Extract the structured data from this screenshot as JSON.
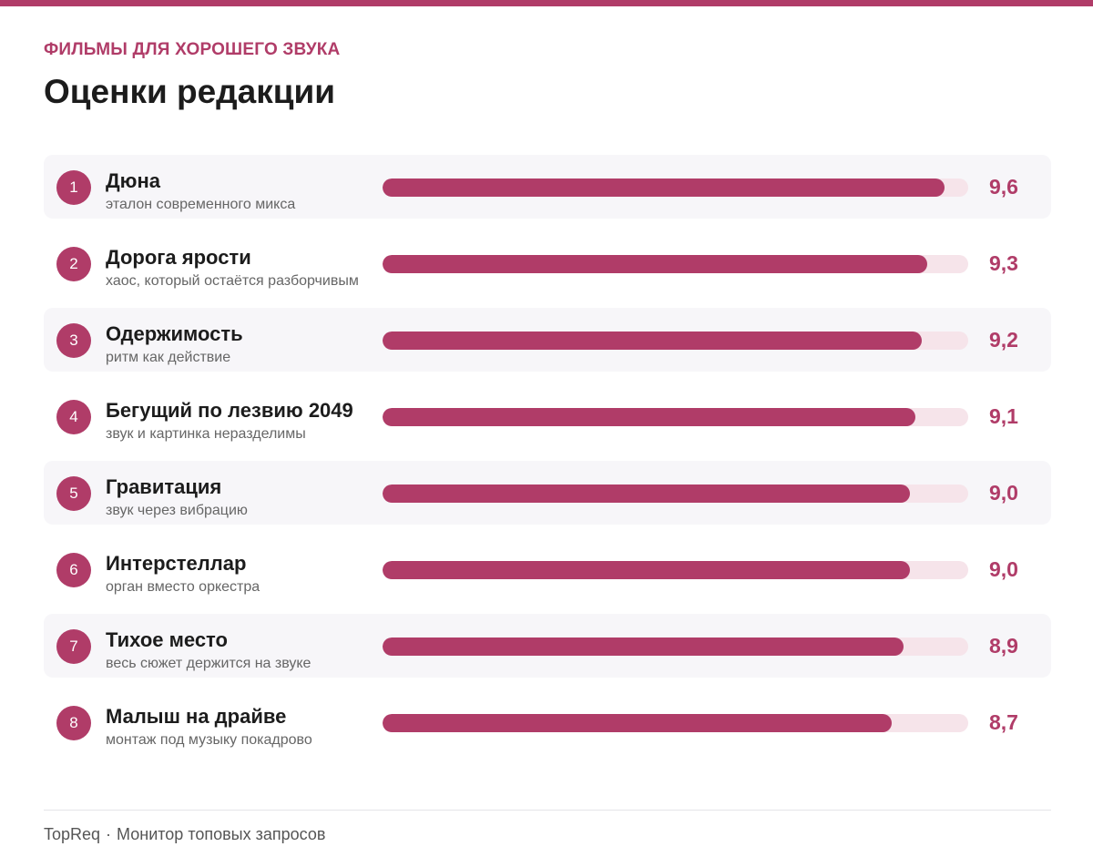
{
  "header": {
    "kicker": "ФИЛЬМЫ ДЛЯ ХОРОШЕГО ЗВУКА",
    "title": "Оценки редакции"
  },
  "footer": {
    "brand": "TopReq",
    "separator": "·",
    "caption": "Монитор топовых запросов"
  },
  "colors": {
    "accent": "#b03c68",
    "track": "#f6e4ea",
    "row_shade": "#f7f6f9"
  },
  "chart_data": {
    "type": "bar",
    "orientation": "horizontal",
    "title": "Оценки редакции",
    "xlim": [
      0,
      10
    ],
    "grid": false,
    "legend": "none",
    "categories": [
      "Дюна",
      "Дорога ярости",
      "Одержимость",
      "Бегущий по лезвию 2049",
      "Гравитация",
      "Интерстеллар",
      "Тихое место",
      "Малыш на драйве"
    ],
    "values": [
      9.6,
      9.3,
      9.2,
      9.1,
      9.0,
      9.0,
      8.9,
      8.7
    ],
    "items": [
      {
        "rank": "1",
        "title": "Дюна",
        "note": "эталон современного микса",
        "score": 9.6,
        "label": "9,6"
      },
      {
        "rank": "2",
        "title": "Дорога ярости",
        "note": "хаос, который остаётся разборчивым",
        "score": 9.3,
        "label": "9,3"
      },
      {
        "rank": "3",
        "title": "Одержимость",
        "note": "ритм как действие",
        "score": 9.2,
        "label": "9,2"
      },
      {
        "rank": "4",
        "title": "Бегущий по лезвию 2049",
        "note": "звук и картинка неразделимы",
        "score": 9.1,
        "label": "9,1"
      },
      {
        "rank": "5",
        "title": "Гравитация",
        "note": "звук через вибрацию",
        "score": 9.0,
        "label": "9,0"
      },
      {
        "rank": "6",
        "title": "Интерстеллар",
        "note": "орган вместо оркестра",
        "score": 9.0,
        "label": "9,0"
      },
      {
        "rank": "7",
        "title": "Тихое место",
        "note": "весь сюжет держится на звуке",
        "score": 8.9,
        "label": "8,9"
      },
      {
        "rank": "8",
        "title": "Малыш на драйве",
        "note": "монтаж под музыку покадрово",
        "score": 8.7,
        "label": "8,7"
      }
    ]
  }
}
